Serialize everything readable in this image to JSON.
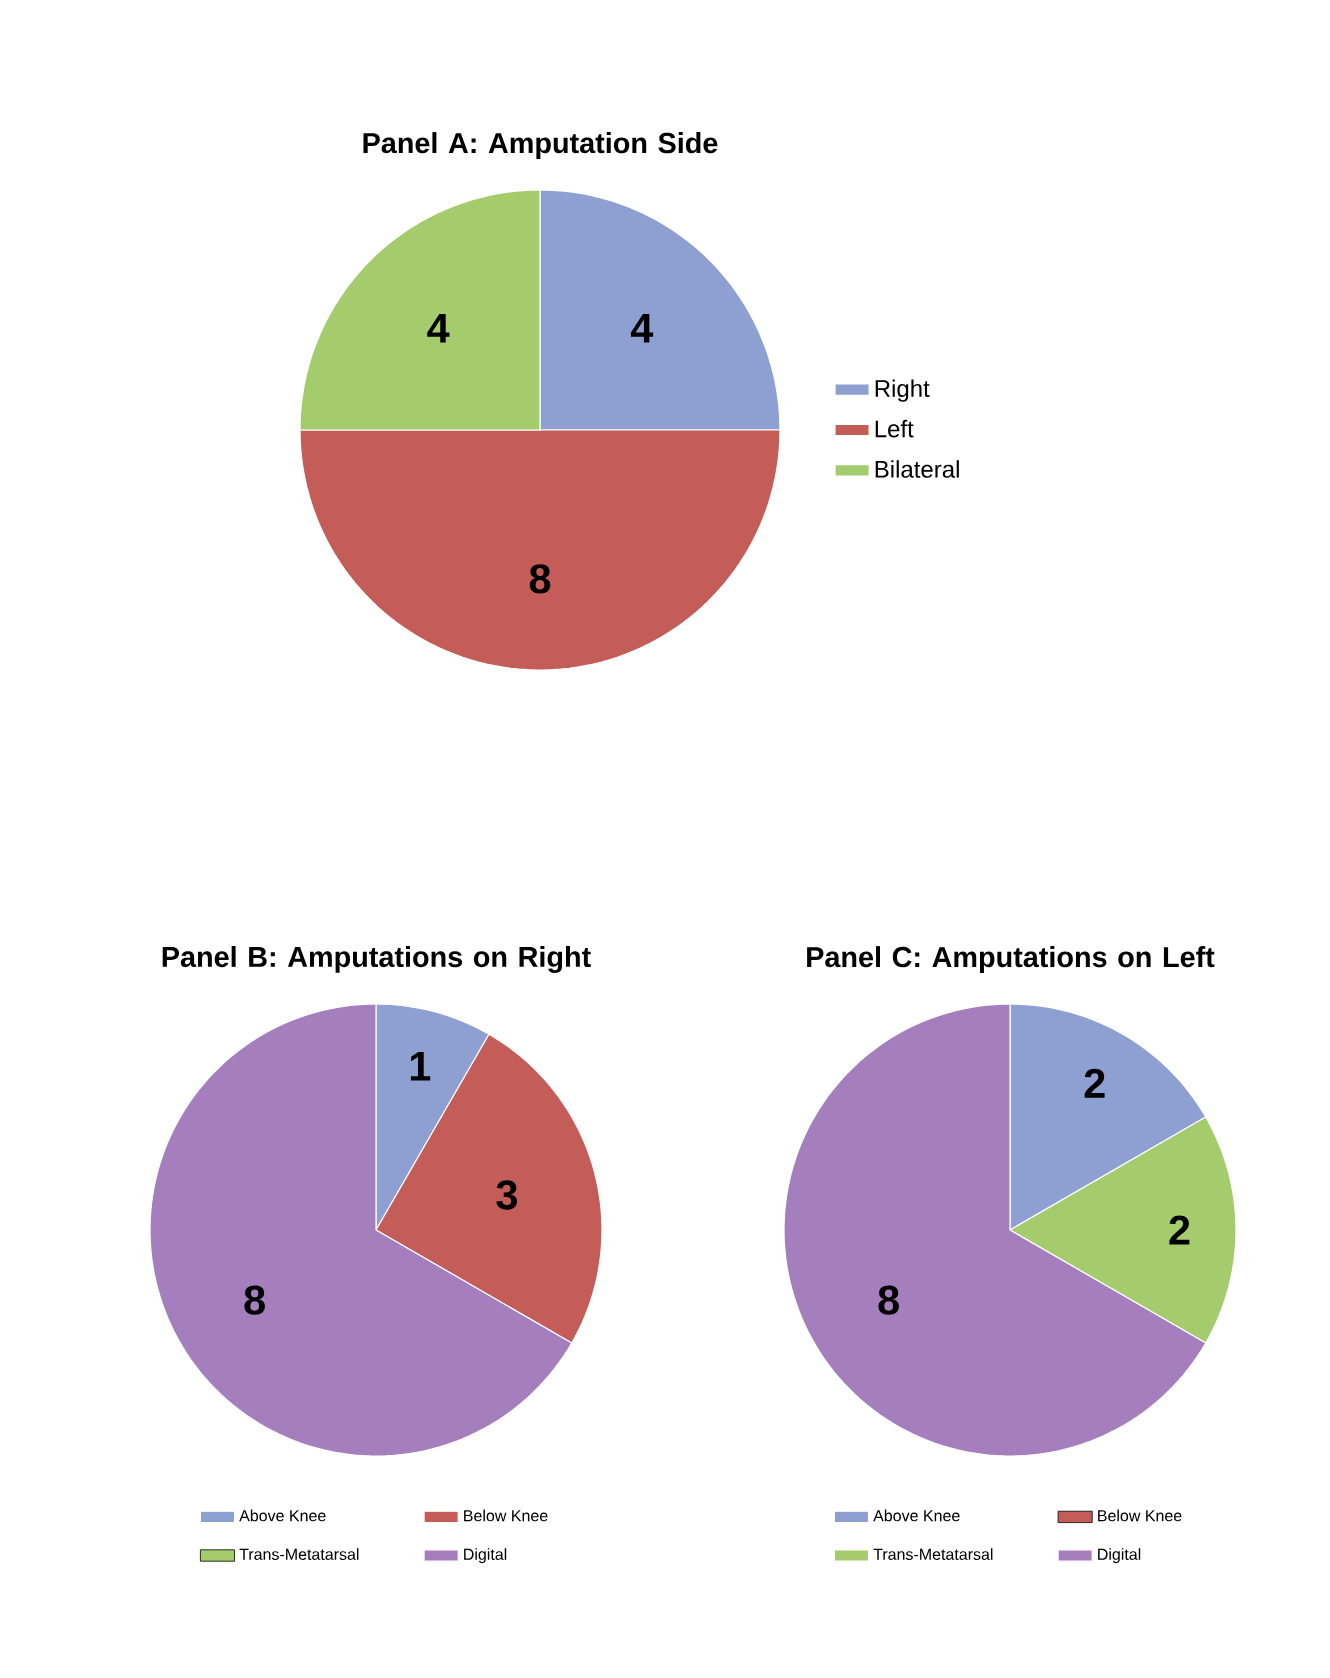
{
  "chart_data": [
    {
      "type": "pie",
      "title": "Panel A: Amputation Side",
      "categories": [
        "Right",
        "Left",
        "Bilateral"
      ],
      "values": [
        4,
        8,
        4
      ],
      "colors": [
        "#8ea0d2",
        "#c45c58",
        "#a4cc6c"
      ],
      "data_labels": true,
      "legend": "right"
    },
    {
      "type": "pie",
      "title": "Panel B: Amputations on Right",
      "categories": [
        "Above Knee",
        "Below Knee",
        "Trans-Metatarsal",
        "Digital"
      ],
      "values": [
        1,
        3,
        0,
        8
      ],
      "colors": [
        "#8ea0d2",
        "#c45c58",
        "#a4cc6c",
        "#a57fbd"
      ],
      "value_labels": [
        "1",
        "3",
        null,
        "8"
      ],
      "legend": "bottom"
    },
    {
      "type": "pie",
      "title": "Panel C: Amputations on Left",
      "categories": [
        "Above Knee",
        "Below Knee",
        "Trans-Metatarsal",
        "Digital"
      ],
      "values": [
        2,
        0,
        2,
        8
      ],
      "colors": [
        "#8ea0d2",
        "#c45c58",
        "#a4cc6c",
        "#a57fbd"
      ],
      "value_labels": [
        "2",
        null,
        "2",
        "8"
      ],
      "legend": "bottom"
    }
  ]
}
